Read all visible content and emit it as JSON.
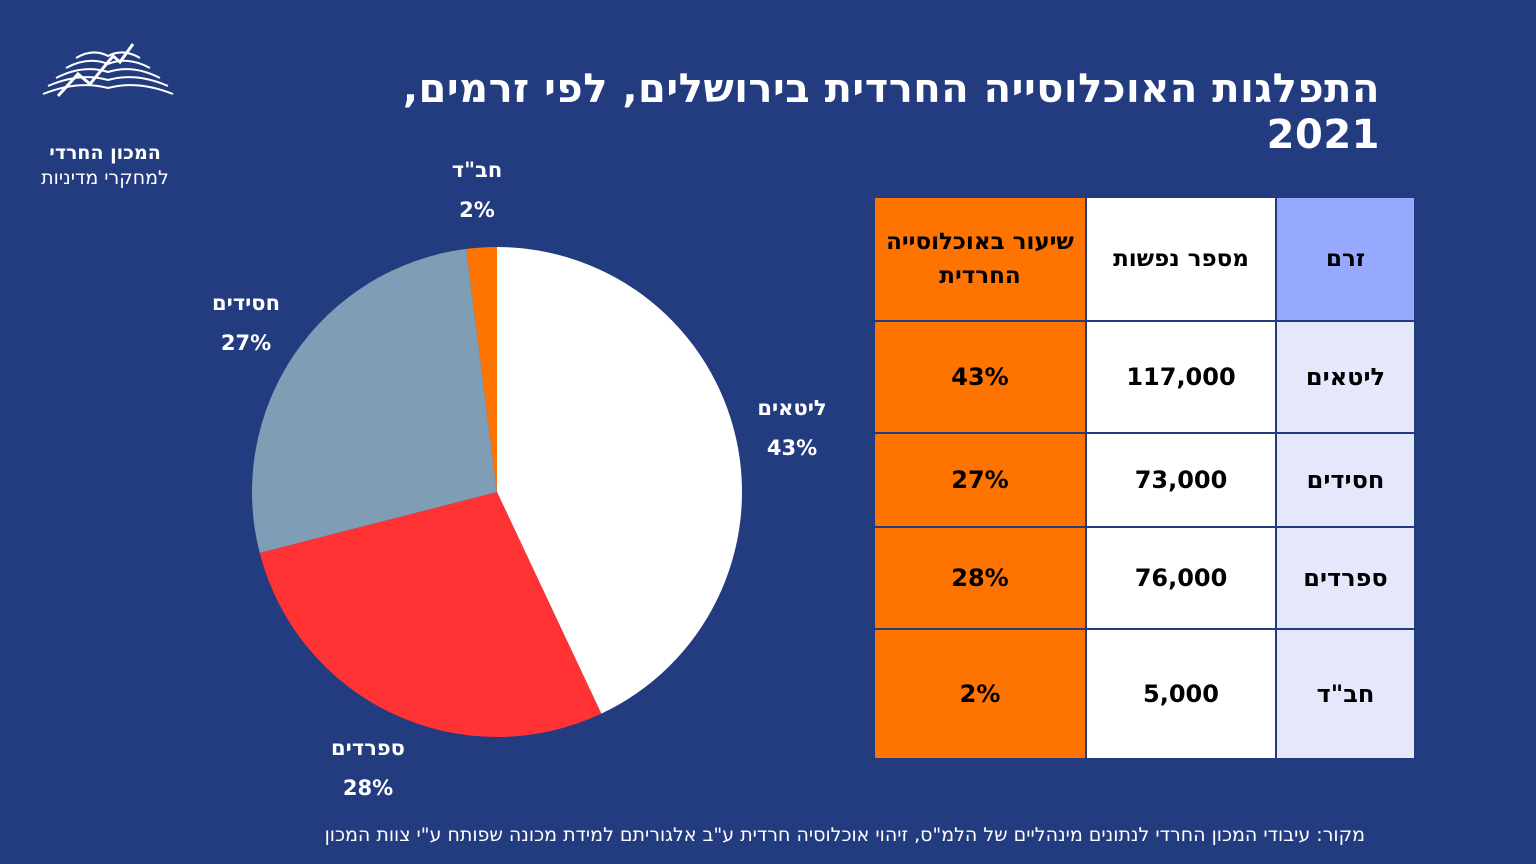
{
  "title": "התפלגות האוכלוסייה החרדית בירושלים, לפי זרמים, 2021",
  "logo": {
    "name": "המכון החרדי",
    "subtitle": "למחקרי מדיניות"
  },
  "chart_data": {
    "type": "pie",
    "slices": [
      {
        "label": "ליטאים",
        "value": 43,
        "display": "43%",
        "color": "#ffffff"
      },
      {
        "label": "ספרדים",
        "value": 28,
        "display": "28%",
        "color": "#ff3333"
      },
      {
        "label": "חסידים",
        "value": 27,
        "display": "27%",
        "color": "#7f9db5"
      },
      {
        "label": "חב\"ד",
        "value": 2,
        "display": "2%",
        "color": "#ff7300"
      }
    ]
  },
  "table": {
    "headers": {
      "stream": "זרם",
      "count": "מספר  נפשות",
      "share": "שיעור באוכלוסייה החרדית"
    },
    "rows": [
      {
        "stream": "ליטאים",
        "count": "117,000",
        "share": "43%"
      },
      {
        "stream": "חסידים",
        "count": "73,000",
        "share": "27%"
      },
      {
        "stream": "ספרדים",
        "count": "76,000",
        "share": "28%"
      },
      {
        "stream": "חב\"ד",
        "count": "5,000",
        "share": "2%"
      }
    ]
  },
  "source": "מקור: עיבודי המכון החרדי לנתונים מינהליים של הלמ\"ס, זיהוי אוכלוסיה חרדית ע\"ב אלגוריתם למידת מכונה שפותח ע\"י צוות המכון"
}
